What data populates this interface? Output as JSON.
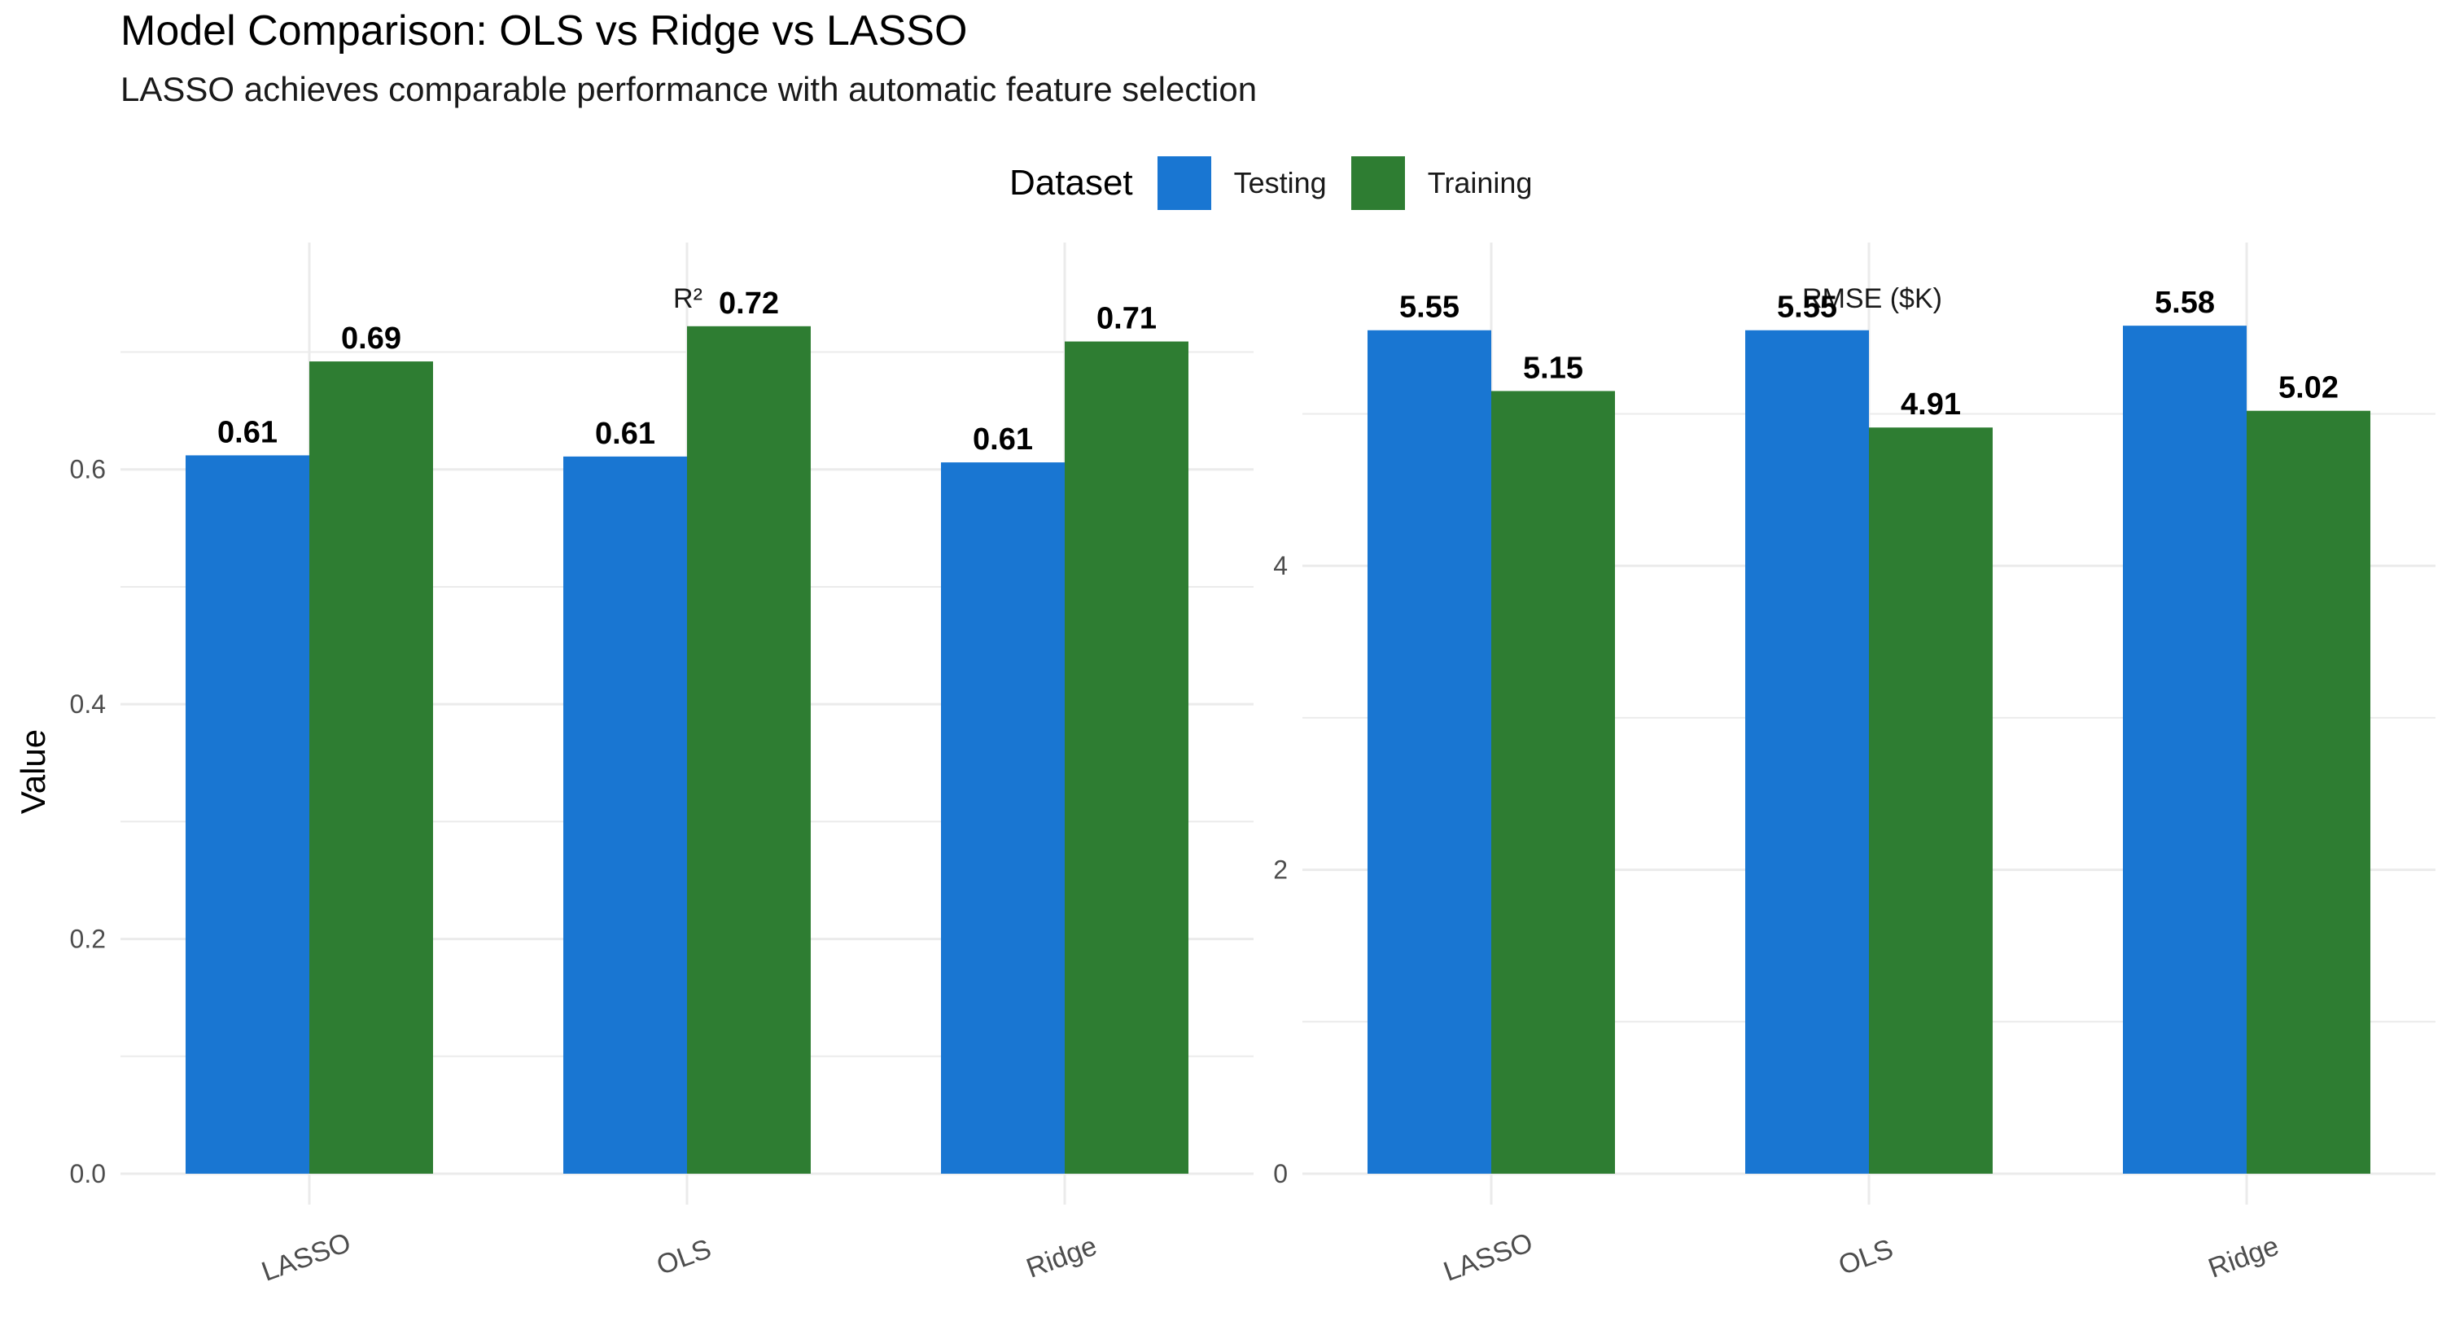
{
  "title": "Model Comparison: OLS vs Ridge vs LASSO",
  "subtitle": "LASSO achieves comparable performance with automatic feature selection",
  "legend": {
    "title": "Dataset",
    "items": [
      {
        "label": "Testing",
        "color": "#1976D2"
      },
      {
        "label": "Training",
        "color": "#2E7D32"
      }
    ]
  },
  "colors": {
    "Testing": "#1976D2",
    "Training": "#2E7D32",
    "grid": "#ebebeb",
    "axis_text": "#4d4d4d"
  },
  "ylabel": "Value",
  "chart_data": [
    {
      "type": "bar",
      "panel": "R²",
      "categories": [
        "LASSO",
        "OLS",
        "Ridge"
      ],
      "series": [
        {
          "name": "Testing",
          "values": [
            0.612,
            0.611,
            0.606
          ],
          "labels": [
            "0.61",
            "0.61",
            "0.61"
          ]
        },
        {
          "name": "Training",
          "values": [
            0.692,
            0.722,
            0.709
          ],
          "labels": [
            "0.69",
            "0.72",
            "0.71"
          ]
        }
      ],
      "yticks": [
        0.0,
        0.2,
        0.4,
        0.6
      ],
      "ytick_labels": [
        "0.0",
        "0.2",
        "0.4",
        "0.6"
      ],
      "ylim": [
        0,
        0.76
      ],
      "xlabel": "",
      "ylabel": "Value",
      "legend_position": "top",
      "grid": true
    },
    {
      "type": "bar",
      "panel": "RMSE ($K)",
      "categories": [
        "LASSO",
        "OLS",
        "Ridge"
      ],
      "series": [
        {
          "name": "Testing",
          "values": [
            5.55,
            5.55,
            5.58
          ],
          "labels": [
            "5.55",
            "5.55",
            "5.58"
          ]
        },
        {
          "name": "Training",
          "values": [
            5.15,
            4.91,
            5.02
          ],
          "labels": [
            "5.15",
            "4.91",
            "5.02"
          ]
        }
      ],
      "yticks": [
        0,
        2,
        4
      ],
      "ytick_labels": [
        "0",
        "2",
        "4"
      ],
      "ylim": [
        0,
        5.87
      ],
      "xlabel": "",
      "ylabel": "",
      "legend_position": "top",
      "grid": true
    }
  ]
}
